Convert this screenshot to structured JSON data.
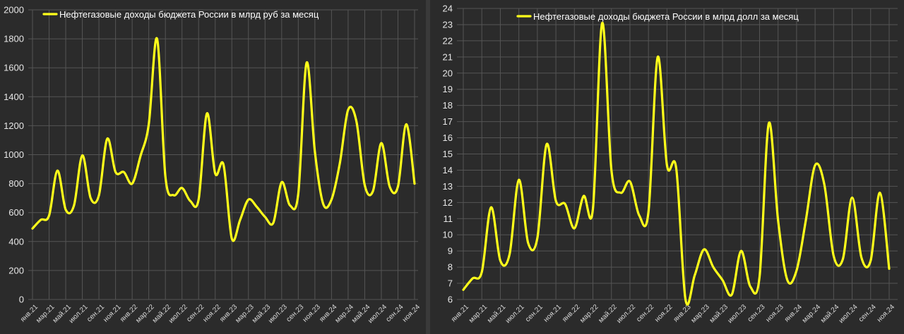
{
  "chart_data": [
    {
      "type": "line",
      "series": [
        {
          "name": "Нефтегазовые доходы бюджета России в млрд руб за месяц",
          "color": "#ffff1a",
          "values": [
            490,
            550,
            580,
            890,
            620,
            650,
            995,
            700,
            720,
            1110,
            880,
            880,
            800,
            990,
            1210,
            1800,
            850,
            720,
            770,
            680,
            690,
            1285,
            870,
            930,
            420,
            550,
            690,
            640,
            570,
            530,
            810,
            650,
            730,
            1635,
            1020,
            660,
            690,
            940,
            1310,
            1230,
            790,
            750,
            1080,
            780,
            780,
            1210,
            800
          ]
        }
      ],
      "categories": [
        "янв.21",
        "фев.21",
        "мар.21",
        "апр.21",
        "май.21",
        "июн.21",
        "июл.21",
        "авг.21",
        "сен.21",
        "окт.21",
        "ноя.21",
        "дек.21",
        "янв.22",
        "фев.22",
        "мар.22",
        "апр.22",
        "май.22",
        "июн.22",
        "июл.22",
        "авг.22",
        "сен.22",
        "окт.22",
        "ноя.22",
        "дек.22",
        "янв.23",
        "фев.23",
        "мар.23",
        "апр.23",
        "май.23",
        "июн.23",
        "июл.23",
        "авг.23",
        "сен.23",
        "окт.23",
        "ноя.23",
        "дек.23",
        "янв.24",
        "фев.24",
        "мар.24",
        "апр.24",
        "май.24",
        "июн.24",
        "июл.24",
        "авг.24",
        "сен.24",
        "окт.24",
        "ноя.24"
      ],
      "x_tick_labels": [
        "янв.21",
        "мар.21",
        "май.21",
        "июл.21",
        "сен.21",
        "ноя.21",
        "янв.22",
        "мар.22",
        "май.22",
        "июл.22",
        "сен.22",
        "ноя.22",
        "янв.23",
        "мар.23",
        "май.23",
        "июл.23",
        "сен.23",
        "ноя.23",
        "янв.24",
        "мар.24",
        "май.24",
        "июл.24",
        "сен.24",
        "ноя.24"
      ],
      "y_ticks": [
        "0",
        "200",
        "400",
        "600",
        "800",
        "1000",
        "1200",
        "1400",
        "1600",
        "1800",
        "2000"
      ],
      "ylim": [
        0,
        2000
      ],
      "grid": true,
      "legend_position": "top-left"
    },
    {
      "type": "line",
      "series": [
        {
          "name": "Нефтегазовые доходы бюджета России в млрд долл за месяц",
          "color": "#ffff1a",
          "values": [
            6.6,
            7.3,
            7.7,
            11.7,
            8.4,
            8.8,
            13.4,
            9.5,
            9.8,
            15.6,
            12.1,
            11.9,
            10.4,
            12.4,
            11.6,
            23.1,
            14.0,
            12.6,
            13.3,
            11.2,
            11.4,
            21.0,
            14.3,
            14.1,
            6.0,
            7.5,
            9.1,
            8.0,
            7.2,
            6.3,
            9.0,
            6.8,
            7.4,
            16.9,
            10.9,
            7.2,
            7.8,
            10.9,
            14.3,
            13.1,
            8.7,
            8.5,
            12.3,
            8.6,
            8.4,
            12.6,
            7.9
          ]
        }
      ],
      "categories": [
        "янв.21",
        "фев.21",
        "мар.21",
        "апр.21",
        "май.21",
        "июн.21",
        "июл.21",
        "авг.21",
        "сен.21",
        "окт.21",
        "ноя.21",
        "дек.21",
        "янв.22",
        "фев.22",
        "мар.22",
        "апр.22",
        "май.22",
        "июн.22",
        "июл.22",
        "авг.22",
        "сен.22",
        "окт.22",
        "ноя.22",
        "дек.22",
        "янв.23",
        "фев.23",
        "мар.23",
        "апр.23",
        "май.23",
        "июн.23",
        "июл.23",
        "авг.23",
        "сен.23",
        "окт.23",
        "ноя.23",
        "дек.23",
        "янв.24",
        "фев.24",
        "мар.24",
        "апр.24",
        "май.24",
        "июн.24",
        "июл.24",
        "авг.24",
        "сен.24",
        "окт.24",
        "ноя.24"
      ],
      "x_tick_labels": [
        "янв.21",
        "мар.21",
        "май.21",
        "июл.21",
        "сен.21",
        "ноя.21",
        "янв.22",
        "мар.22",
        "май.22",
        "июл.22",
        "сен.22",
        "ноя.22",
        "янв.23",
        "мар.23",
        "май.23",
        "июл.23",
        "сен.23",
        "ноя.23",
        "янв.24",
        "мар.24",
        "май.24",
        "июл.24",
        "сен.24",
        "ноя.24"
      ],
      "y_ticks": [
        "6",
        "7",
        "8",
        "9",
        "10",
        "11",
        "12",
        "13",
        "14",
        "15",
        "16",
        "17",
        "18",
        "19",
        "20",
        "21",
        "22",
        "23",
        "24"
      ],
      "ylim": [
        6,
        24
      ],
      "grid": true,
      "legend_position": "top"
    }
  ]
}
